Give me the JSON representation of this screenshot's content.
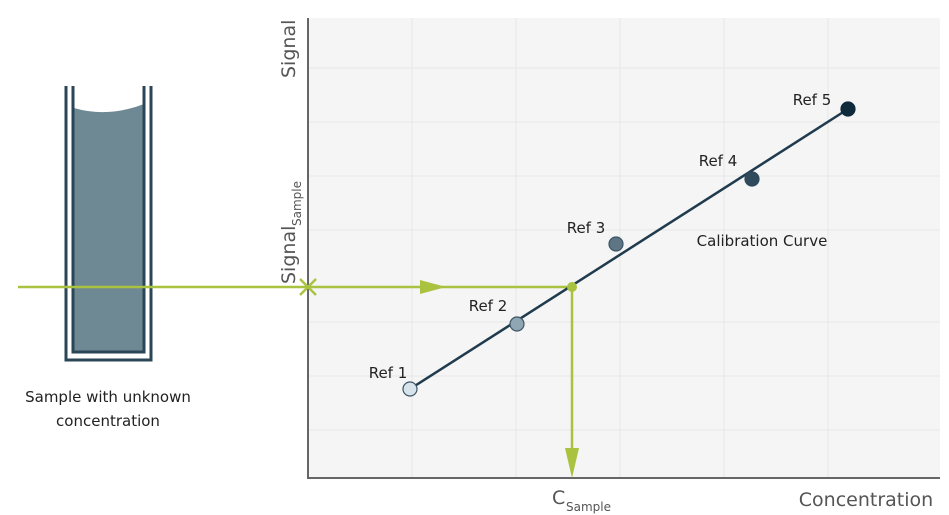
{
  "sample_label": {
    "line1": "Sample with unknown",
    "line2": "concentration"
  },
  "axes": {
    "y_label": "Signal",
    "x_label": "Concentration"
  },
  "signal_sample": {
    "main": "Signal",
    "sub": "Sample"
  },
  "c_sample": {
    "main": "C",
    "sub": "Sample"
  },
  "curve_label": "Calibration Curve",
  "points": [
    {
      "label": "Ref 1"
    },
    {
      "label": "Ref 2"
    },
    {
      "label": "Ref 3"
    },
    {
      "label": "Ref 4"
    },
    {
      "label": "Ref 5"
    }
  ]
}
